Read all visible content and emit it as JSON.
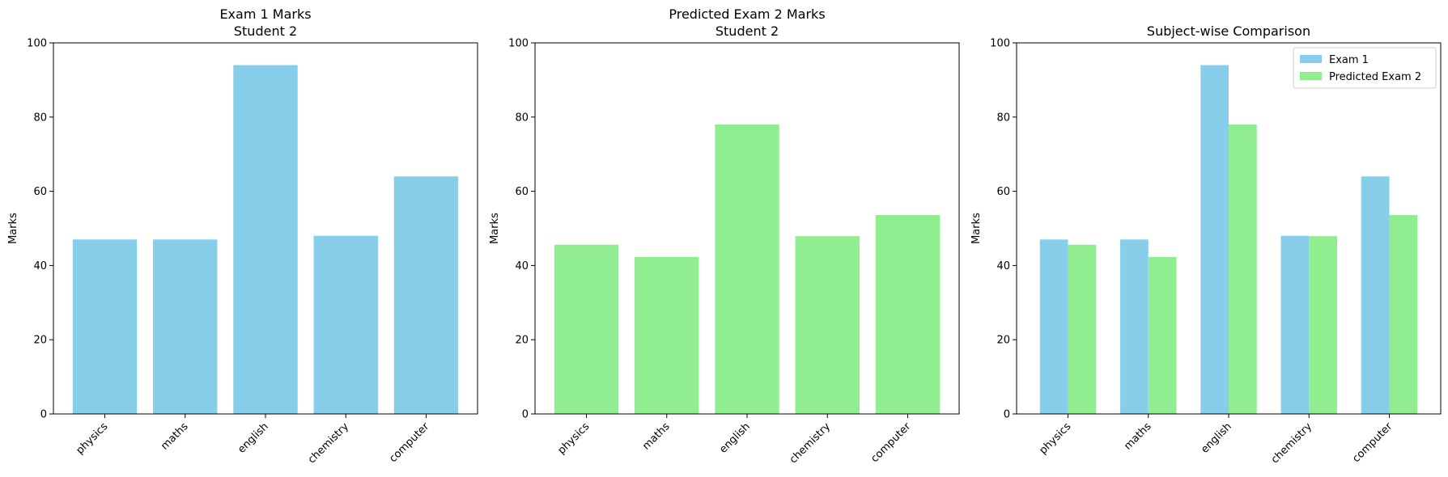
{
  "chart_data": [
    {
      "type": "bar",
      "title": "Exam 1 Marks",
      "subtitle": "Student 2",
      "xlabel": "",
      "ylabel": "Marks",
      "categories": [
        "physics",
        "maths",
        "english",
        "chemistry",
        "computer"
      ],
      "series": [
        {
          "values": [
            47,
            47,
            94,
            48,
            64
          ],
          "color": "#87ceeb"
        }
      ],
      "ylim": [
        0,
        100
      ],
      "yticks": [
        0,
        20,
        40,
        60,
        80,
        100
      ],
      "grid": false
    },
    {
      "type": "bar",
      "title": "Predicted Exam 2 Marks",
      "subtitle": "Student 2",
      "xlabel": "",
      "ylabel": "Marks",
      "categories": [
        "physics",
        "maths",
        "english",
        "chemistry",
        "computer"
      ],
      "series": [
        {
          "values": [
            45.6,
            42.3,
            78,
            47.9,
            53.6
          ],
          "color": "#90ee90"
        }
      ],
      "ylim": [
        0,
        100
      ],
      "yticks": [
        0,
        20,
        40,
        60,
        80,
        100
      ],
      "grid": false
    },
    {
      "type": "bar",
      "title": "Subject-wise Comparison",
      "subtitle": "",
      "xlabel": "",
      "ylabel": "Marks",
      "categories": [
        "physics",
        "maths",
        "english",
        "chemistry",
        "computer"
      ],
      "series": [
        {
          "name": "Exam 1",
          "values": [
            47,
            47,
            94,
            48,
            64
          ],
          "color": "#87ceeb"
        },
        {
          "name": "Predicted Exam 2",
          "values": [
            45.6,
            42.3,
            78,
            47.9,
            53.6
          ],
          "color": "#90ee90"
        }
      ],
      "ylim": [
        0,
        100
      ],
      "yticks": [
        0,
        20,
        40,
        60,
        80,
        100
      ],
      "grid": false,
      "legend": "top-right"
    }
  ]
}
